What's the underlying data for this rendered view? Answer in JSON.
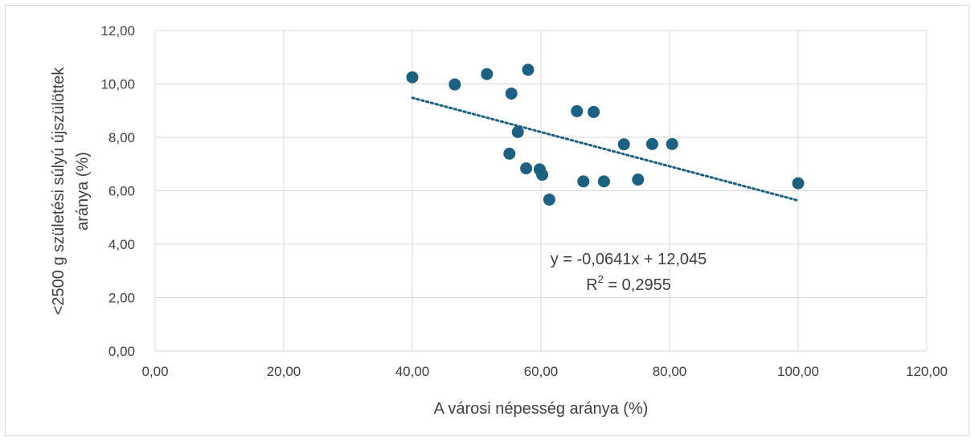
{
  "chart_data": {
    "type": "scatter",
    "title": "",
    "xlabel": "A városi népesség aránya (%)",
    "ylabel_lines": [
      "<2500 g születési súlyú újszülöttek",
      "aránya (%)"
    ],
    "xlim": [
      0,
      120
    ],
    "ylim": [
      0,
      12
    ],
    "x_ticks": [
      0,
      20,
      40,
      60,
      80,
      100,
      120
    ],
    "y_ticks": [
      0,
      2,
      4,
      6,
      8,
      10,
      12
    ],
    "x_tick_labels": [
      "0,00",
      "20,00",
      "40,00",
      "60,00",
      "80,00",
      "100,00",
      "120,00"
    ],
    "y_tick_labels": [
      "0,00",
      "2,00",
      "4,00",
      "6,00",
      "8,00",
      "10,00",
      "12,00"
    ],
    "grid": true,
    "marker_color": "#1c6182",
    "trendline_color": "#1c6182",
    "points": [
      {
        "x": 40.0,
        "y": 10.25
      },
      {
        "x": 46.6,
        "y": 9.98
      },
      {
        "x": 51.6,
        "y": 10.37
      },
      {
        "x": 55.4,
        "y": 9.64
      },
      {
        "x": 58.0,
        "y": 10.53
      },
      {
        "x": 56.4,
        "y": 8.2
      },
      {
        "x": 55.1,
        "y": 7.39
      },
      {
        "x": 57.7,
        "y": 6.84
      },
      {
        "x": 59.8,
        "y": 6.8
      },
      {
        "x": 60.2,
        "y": 6.6
      },
      {
        "x": 61.3,
        "y": 5.67
      },
      {
        "x": 65.6,
        "y": 8.98
      },
      {
        "x": 68.2,
        "y": 8.95
      },
      {
        "x": 66.6,
        "y": 6.35
      },
      {
        "x": 69.8,
        "y": 6.35
      },
      {
        "x": 72.9,
        "y": 7.74
      },
      {
        "x": 77.3,
        "y": 7.75
      },
      {
        "x": 80.4,
        "y": 7.75
      },
      {
        "x": 75.1,
        "y": 6.42
      },
      {
        "x": 100.0,
        "y": 6.28
      }
    ],
    "trendline": {
      "slope": -0.0641,
      "intercept": 12.045,
      "x_range": [
        40,
        100
      ],
      "equation_label": "y = -0,0641x + 12,045",
      "r2_prefix": "R",
      "r2_sup": "2",
      "r2_suffix": " = 0,2955"
    }
  }
}
